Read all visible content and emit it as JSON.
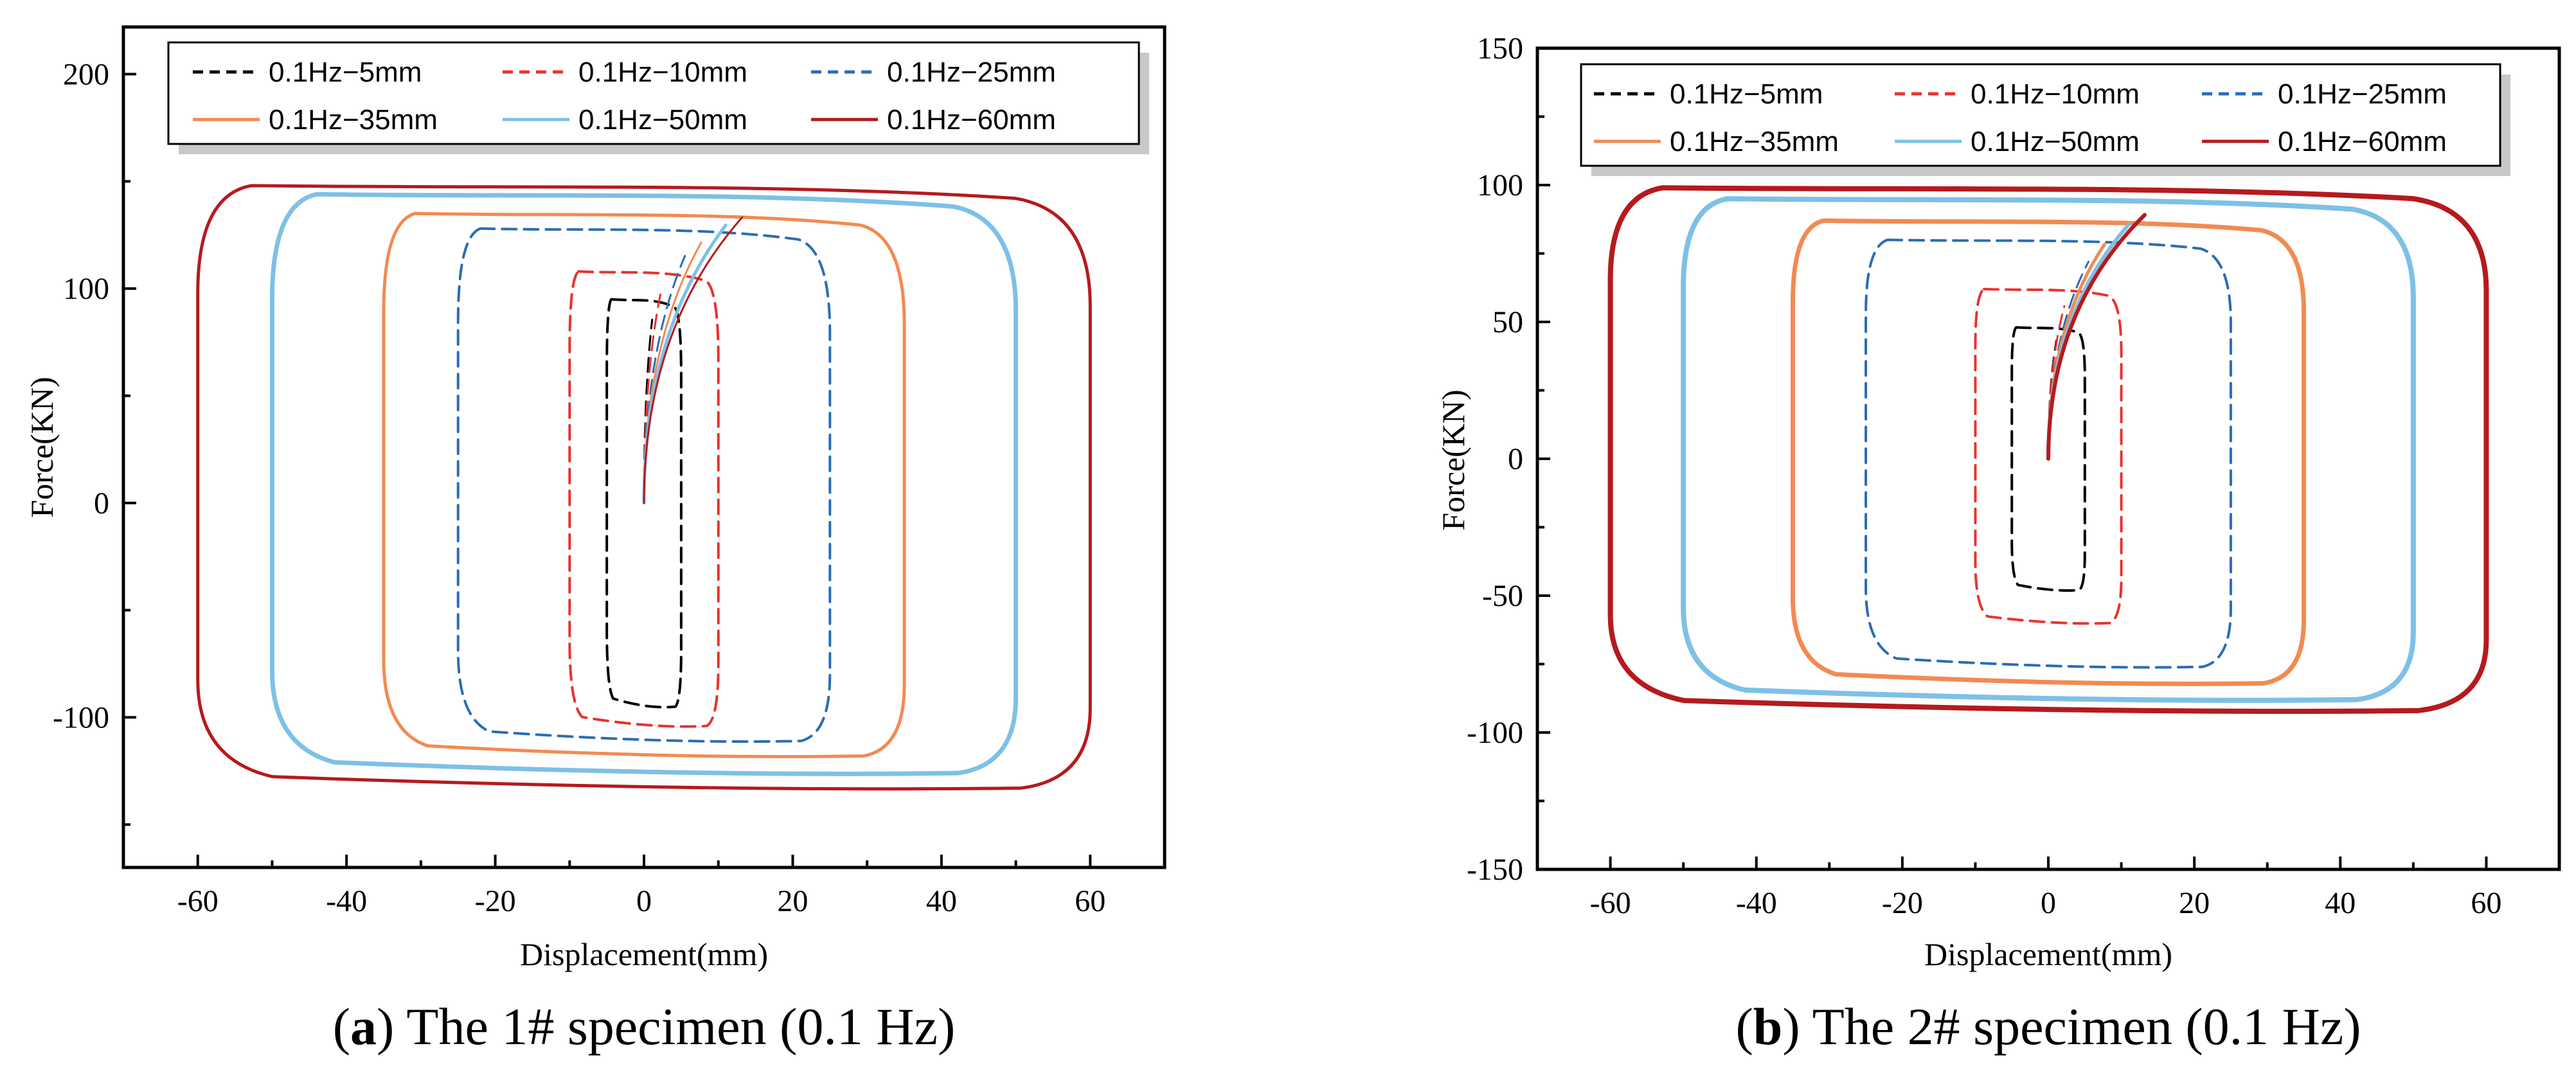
{
  "chart_data": [
    {
      "type": "line",
      "panel": "a",
      "caption_letter": "a",
      "caption_text": ") The 1# specimen (0.1 Hz)",
      "xlabel": "Displacement(mm)",
      "ylabel": "Force(KN)",
      "xlim": [
        -70,
        70
      ],
      "ylim": [
        -170,
        222
      ],
      "xticks": [
        -60,
        -40,
        -20,
        0,
        20,
        40,
        60
      ],
      "yticks": [
        -100,
        0,
        100,
        200
      ],
      "legend_position": "top",
      "series": [
        {
          "name": "0.1Hz−5mm",
          "color": "#000000",
          "dash": true,
          "width": 4,
          "loops": [
            {
              "xmin": -5,
              "xmax": 5,
              "top": 95,
              "bottom": -95
            }
          ]
        },
        {
          "name": "0.1Hz−10mm",
          "color": "#e8332e",
          "dash": true,
          "width": 4,
          "loops": [
            {
              "xmin": -10,
              "xmax": 10,
              "top": 108,
              "bottom": -104
            }
          ]
        },
        {
          "name": "0.1Hz−25mm",
          "color": "#2a6db5",
          "dash": true,
          "width": 4,
          "loops": [
            {
              "xmin": -25,
              "xmax": 25,
              "top": 128,
              "bottom": -111
            }
          ]
        },
        {
          "name": "0.1Hz−35mm",
          "color": "#f28a52",
          "dash": false,
          "width": 5,
          "loops": [
            {
              "xmin": -35,
              "xmax": 35,
              "top": 135,
              "bottom": -118
            }
          ]
        },
        {
          "name": "0.1Hz−50mm",
          "color": "#7ec0e6",
          "dash": false,
          "width": 7,
          "loops": [
            {
              "xmin": -50,
              "xmax": 50,
              "top": 144,
              "bottom": -126
            }
          ]
        },
        {
          "name": "0.1Hz−60mm",
          "color": "#b51a1e",
          "dash": false,
          "width": 5,
          "loops": [
            {
              "xmin": -60,
              "xmax": 60,
              "top": 148,
              "bottom": -133
            }
          ]
        }
      ]
    },
    {
      "type": "line",
      "panel": "b",
      "caption_letter": "b",
      "caption_text": ") The 2# specimen (0.1 Hz)",
      "xlabel": "Displacement(mm)",
      "ylabel": "Force(KN)",
      "xlim": [
        -70,
        70
      ],
      "ylim": [
        -150,
        150
      ],
      "xticks": [
        -60,
        -40,
        -20,
        0,
        20,
        40,
        60
      ],
      "yticks": [
        -150,
        -100,
        -50,
        0,
        50,
        100,
        150
      ],
      "legend_position": "top",
      "series": [
        {
          "name": "0.1Hz−5mm",
          "color": "#000000",
          "dash": true,
          "width": 4,
          "loops": [
            {
              "xmin": -5,
              "xmax": 5,
              "top": 48,
              "bottom": -48
            }
          ]
        },
        {
          "name": "0.1Hz−10mm",
          "color": "#e8332e",
          "dash": true,
          "width": 4,
          "loops": [
            {
              "xmin": -10,
              "xmax": 10,
              "top": 62,
              "bottom": -60
            }
          ]
        },
        {
          "name": "0.1Hz−25mm",
          "color": "#2a6db5",
          "dash": true,
          "width": 4,
          "loops": [
            {
              "xmin": -25,
              "xmax": 25,
              "top": 80,
              "bottom": -76
            }
          ]
        },
        {
          "name": "0.1Hz−35mm",
          "color": "#f28a52",
          "dash": false,
          "width": 7,
          "loops": [
            {
              "xmin": -35,
              "xmax": 35,
              "top": 87,
              "bottom": -82
            }
          ]
        },
        {
          "name": "0.1Hz−50mm",
          "color": "#7ec0e6",
          "dash": false,
          "width": 8,
          "loops": [
            {
              "xmin": -50,
              "xmax": 50,
              "top": 95,
              "bottom": -88
            }
          ]
        },
        {
          "name": "0.1Hz−60mm",
          "color": "#b51a1e",
          "dash": false,
          "width": 8,
          "loops": [
            {
              "xmin": -60,
              "xmax": 60,
              "top": 99,
              "bottom": -92
            }
          ]
        }
      ]
    }
  ]
}
